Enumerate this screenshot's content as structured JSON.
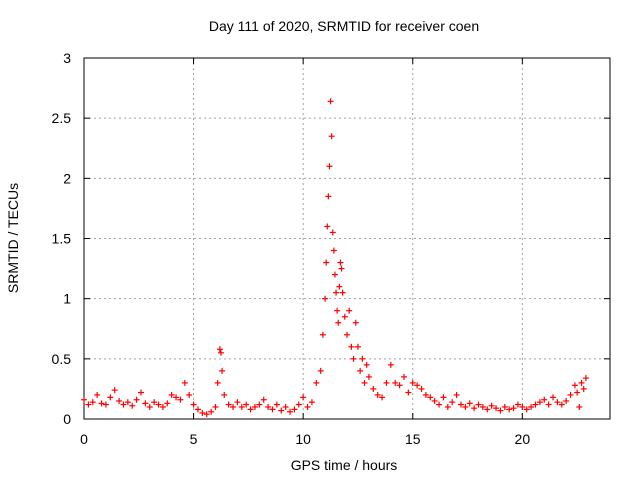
{
  "chart_data": {
    "type": "scatter",
    "title": "Day 111 of 2020, SRMTID for receiver coen",
    "xlabel": "GPS time / hours",
    "ylabel": "SRMTID / TECUs",
    "xlim": [
      0,
      24
    ],
    "ylim": [
      0,
      3
    ],
    "xticks": [
      0,
      5,
      10,
      15,
      20
    ],
    "xtick_labels": [
      "0",
      "5",
      "10",
      "15",
      "20"
    ],
    "yticks": [
      0,
      0.5,
      1,
      1.5,
      2,
      2.5,
      3
    ],
    "ytick_labels": [
      "0",
      "0.5",
      "1",
      "1.5",
      "2",
      "2.5",
      "3"
    ],
    "grid": true,
    "marker": "plus",
    "series": [
      {
        "name": "SRMTID",
        "color": "#ff0000",
        "x": [
          0.0,
          0.2,
          0.4,
          0.6,
          0.8,
          1.0,
          1.2,
          1.4,
          1.6,
          1.8,
          2.0,
          2.2,
          2.4,
          2.6,
          2.8,
          3.0,
          3.2,
          3.4,
          3.6,
          3.8,
          4.0,
          4.2,
          4.4,
          4.6,
          4.8,
          5.0,
          5.2,
          5.4,
          5.6,
          5.8,
          6.0,
          6.1,
          6.2,
          6.25,
          6.3,
          6.4,
          6.6,
          6.8,
          7.0,
          7.2,
          7.4,
          7.6,
          7.8,
          8.0,
          8.2,
          8.4,
          8.6,
          8.8,
          9.0,
          9.2,
          9.4,
          9.6,
          9.8,
          10.0,
          10.2,
          10.4,
          10.6,
          10.8,
          10.9,
          11.0,
          11.05,
          11.1,
          11.15,
          11.2,
          11.25,
          11.3,
          11.35,
          11.4,
          11.45,
          11.5,
          11.55,
          11.6,
          11.65,
          11.7,
          11.75,
          11.8,
          11.9,
          12.0,
          12.1,
          12.2,
          12.3,
          12.4,
          12.5,
          12.6,
          12.7,
          12.8,
          12.9,
          13.0,
          13.2,
          13.4,
          13.6,
          13.8,
          14.0,
          14.2,
          14.4,
          14.6,
          14.8,
          15.0,
          15.2,
          15.4,
          15.6,
          15.8,
          16.0,
          16.2,
          16.4,
          16.6,
          16.8,
          17.0,
          17.2,
          17.4,
          17.6,
          17.8,
          18.0,
          18.2,
          18.4,
          18.6,
          18.8,
          19.0,
          19.2,
          19.4,
          19.6,
          19.8,
          20.0,
          20.2,
          20.4,
          20.6,
          20.8,
          21.0,
          21.2,
          21.4,
          21.6,
          21.8,
          22.0,
          22.2,
          22.4,
          22.5,
          22.6,
          22.7,
          22.8,
          22.9
        ],
        "y": [
          0.16,
          0.12,
          0.14,
          0.2,
          0.13,
          0.12,
          0.18,
          0.24,
          0.15,
          0.12,
          0.14,
          0.11,
          0.16,
          0.22,
          0.13,
          0.1,
          0.14,
          0.12,
          0.1,
          0.13,
          0.2,
          0.18,
          0.16,
          0.3,
          0.2,
          0.12,
          0.08,
          0.05,
          0.04,
          0.06,
          0.1,
          0.3,
          0.58,
          0.55,
          0.4,
          0.2,
          0.12,
          0.1,
          0.14,
          0.1,
          0.12,
          0.08,
          0.1,
          0.12,
          0.16,
          0.1,
          0.08,
          0.12,
          0.07,
          0.1,
          0.06,
          0.08,
          0.12,
          0.18,
          0.1,
          0.14,
          0.3,
          0.4,
          0.7,
          1.0,
          1.3,
          1.6,
          1.85,
          2.1,
          2.64,
          2.35,
          1.55,
          1.4,
          1.2,
          1.05,
          0.9,
          0.8,
          1.1,
          1.3,
          1.25,
          1.05,
          0.85,
          0.7,
          0.9,
          0.6,
          0.5,
          0.8,
          0.6,
          0.4,
          0.5,
          0.3,
          0.45,
          0.35,
          0.25,
          0.2,
          0.18,
          0.3,
          0.45,
          0.3,
          0.28,
          0.35,
          0.22,
          0.3,
          0.28,
          0.25,
          0.2,
          0.18,
          0.15,
          0.12,
          0.18,
          0.1,
          0.14,
          0.2,
          0.12,
          0.1,
          0.13,
          0.09,
          0.12,
          0.1,
          0.08,
          0.11,
          0.09,
          0.07,
          0.1,
          0.08,
          0.09,
          0.12,
          0.1,
          0.08,
          0.1,
          0.12,
          0.14,
          0.16,
          0.12,
          0.18,
          0.14,
          0.12,
          0.15,
          0.2,
          0.28,
          0.22,
          0.1,
          0.3,
          0.25,
          0.34
        ]
      }
    ]
  }
}
